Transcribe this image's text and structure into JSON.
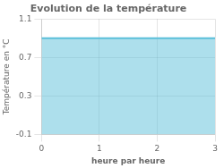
{
  "chart_data": {
    "type": "area",
    "title": "Evolution de la température",
    "xlabel": "heure par heure",
    "ylabel": "Température en °C",
    "x": [
      0,
      3
    ],
    "values": [
      0.9,
      0.9
    ],
    "color": "#5bbfda",
    "xlim": [
      0,
      3
    ],
    "ylim": [
      -0.1,
      1.1
    ],
    "xticks": [
      0,
      1,
      2,
      3
    ],
    "yticks": [
      -0.1,
      0.3,
      0.7,
      1.1
    ],
    "grid": true
  }
}
